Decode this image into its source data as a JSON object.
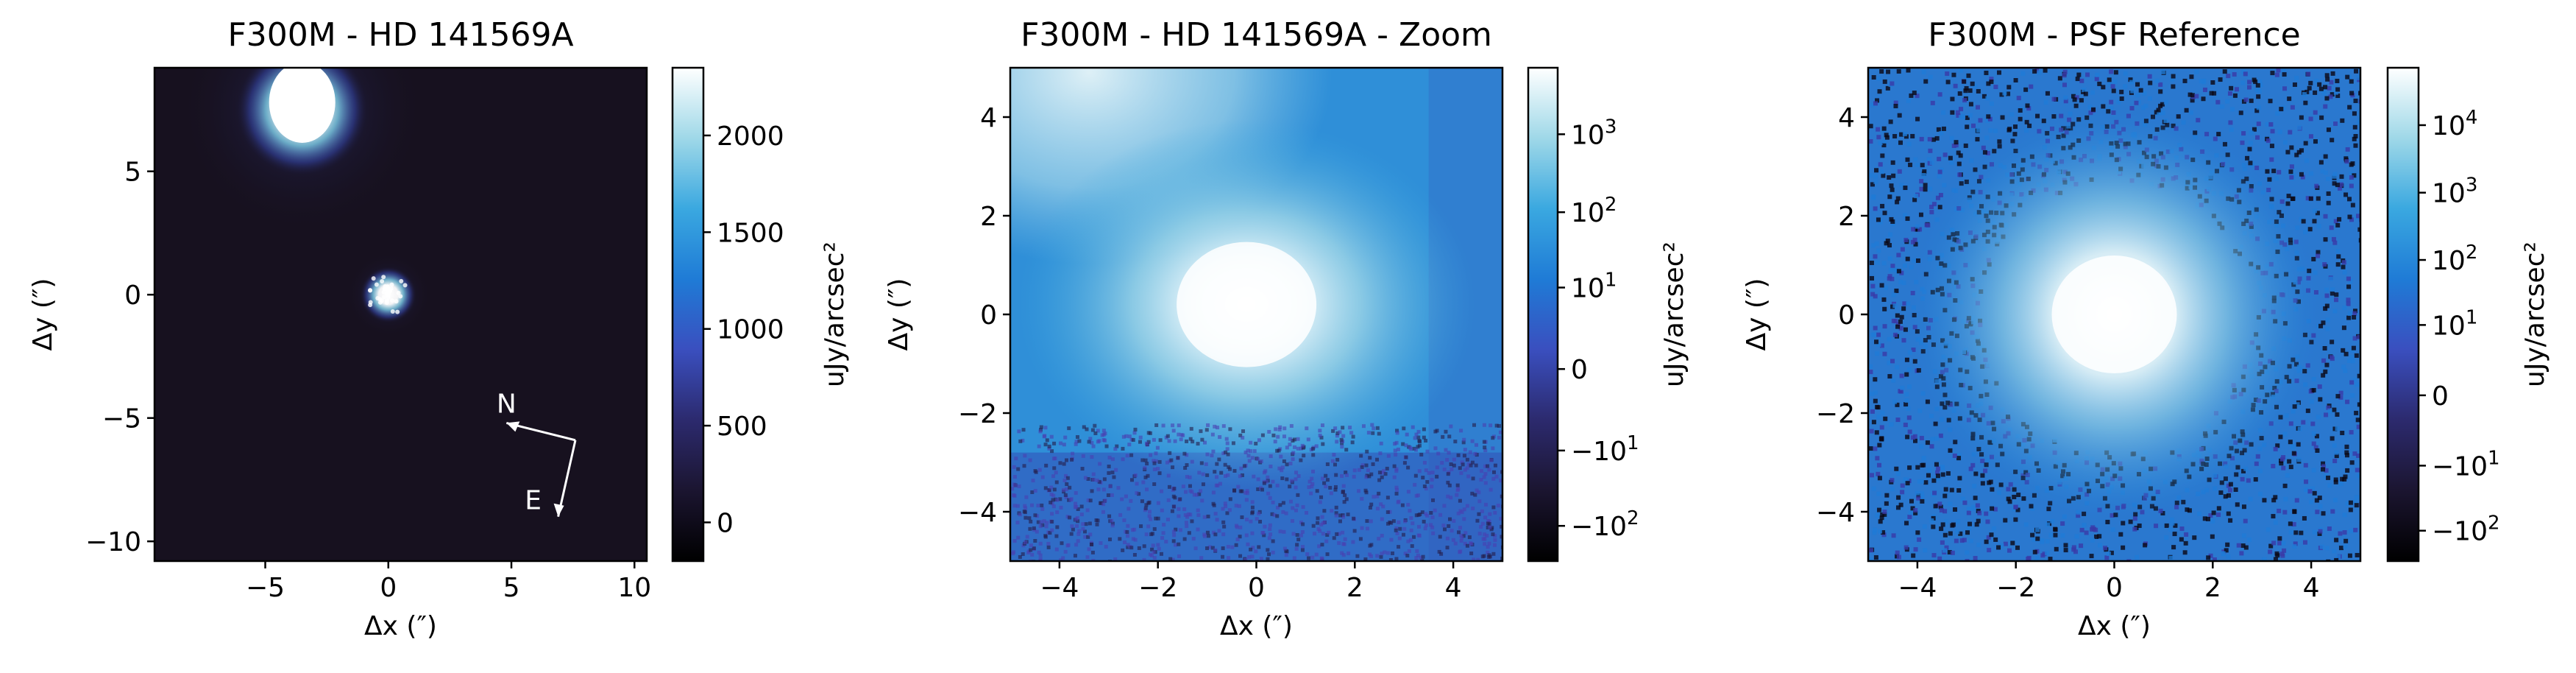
{
  "chart_data": [
    {
      "type": "heatmap",
      "title": "F300M - HD 141569A",
      "xlabel": "Δx (″)",
      "ylabel": "Δy (″)",
      "xlim": [
        -9.5,
        10.5
      ],
      "ylim": [
        -10.8,
        9.2
      ],
      "xticks": [
        -5,
        0,
        5,
        10
      ],
      "xtick_labels": [
        "−5",
        "0",
        "5",
        "10"
      ],
      "yticks": [
        5,
        0,
        -5,
        -10
      ],
      "ytick_labels": [
        "5",
        "0",
        "−5",
        "−10"
      ],
      "colorbar": {
        "label": "uJy/arcsec²",
        "scale": "linear",
        "range": [
          -200,
          2350
        ],
        "ticks": [
          2000,
          1500,
          1000,
          500,
          0
        ],
        "tick_labels": [
          "2000",
          "1500",
          "1000",
          "500",
          "0"
        ],
        "colormap": [
          "#000000",
          "#1b1530",
          "#2c2a6e",
          "#3a4fbf",
          "#1f7bd6",
          "#3aa8e0",
          "#9fd8e8",
          "#ffffff"
        ]
      },
      "sources": [
        {
          "x": -3.5,
          "y": 7.5,
          "note": "saturated primary star"
        },
        {
          "x": 0.0,
          "y": 0.0,
          "note": "secondary source"
        }
      ],
      "compass": {
        "north_label": "N",
        "east_label": "E"
      }
    },
    {
      "type": "heatmap",
      "title": "F300M - HD 141569A - Zoom",
      "xlabel": "Δx (″)",
      "ylabel": "Δy (″)",
      "xlim": [
        -5,
        5
      ],
      "ylim": [
        -5,
        5
      ],
      "xticks": [
        -4,
        -2,
        0,
        2,
        4
      ],
      "xtick_labels": [
        "−4",
        "−2",
        "0",
        "2",
        "4"
      ],
      "yticks": [
        4,
        2,
        0,
        -2,
        -4
      ],
      "ytick_labels": [
        "4",
        "2",
        "0",
        "−2",
        "−4"
      ],
      "colorbar": {
        "label": "uJy/arcsec²",
        "scale": "symlog",
        "ticks": [
          1000,
          100,
          10,
          0,
          -10,
          -100
        ],
        "tick_labels": [
          {
            "base": "10",
            "exp": "3"
          },
          {
            "base": "10",
            "exp": "2"
          },
          {
            "base": "10",
            "exp": "1"
          },
          {
            "base": "0",
            "exp": ""
          },
          {
            "base": "−10",
            "exp": "1"
          },
          {
            "base": "−10",
            "exp": "2"
          }
        ],
        "colormap": [
          "#000000",
          "#1b1530",
          "#2c2a6e",
          "#3a4fbf",
          "#1f7bd6",
          "#3aa8e0",
          "#9fd8e8",
          "#ffffff"
        ]
      }
    },
    {
      "type": "heatmap",
      "title": "F300M - PSF Reference",
      "xlabel": "Δx (″)",
      "ylabel": "Δy (″)",
      "xlim": [
        -5,
        5
      ],
      "ylim": [
        -5,
        5
      ],
      "xticks": [
        -4,
        -2,
        0,
        2,
        4
      ],
      "xtick_labels": [
        "−4",
        "−2",
        "0",
        "2",
        "4"
      ],
      "yticks": [
        4,
        2,
        0,
        -2,
        -4
      ],
      "ytick_labels": [
        "4",
        "2",
        "0",
        "−2",
        "−4"
      ],
      "colorbar": {
        "label": "uJy/arcsec²",
        "scale": "symlog",
        "ticks": [
          10000,
          1000,
          100,
          10,
          0,
          -10,
          -100
        ],
        "tick_labels": [
          {
            "base": "10",
            "exp": "4"
          },
          {
            "base": "10",
            "exp": "3"
          },
          {
            "base": "10",
            "exp": "2"
          },
          {
            "base": "10",
            "exp": "1"
          },
          {
            "base": "0",
            "exp": ""
          },
          {
            "base": "−10",
            "exp": "1"
          },
          {
            "base": "−10",
            "exp": "2"
          }
        ],
        "colormap": [
          "#000000",
          "#1b1530",
          "#2c2a6e",
          "#3a4fbf",
          "#1f7bd6",
          "#3aa8e0",
          "#9fd8e8",
          "#ffffff"
        ]
      }
    }
  ]
}
